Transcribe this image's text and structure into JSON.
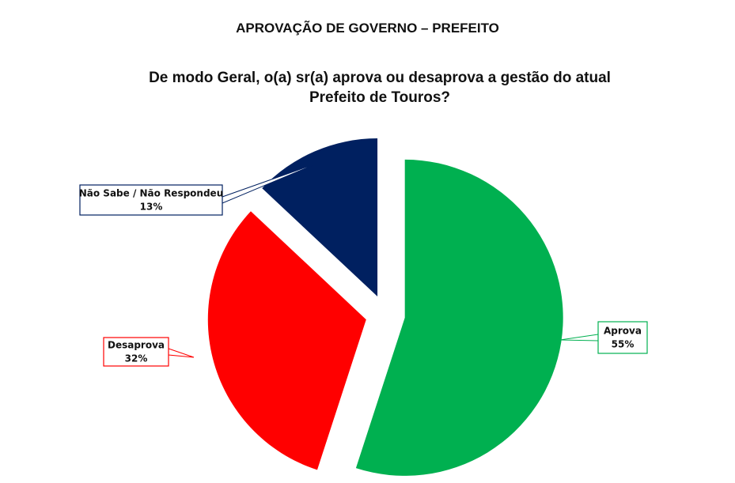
{
  "chart_data": {
    "type": "pie",
    "title": "APROVAÇÃO DE GOVERNO – PREFEITO",
    "subtitle": "De modo Geral, o(a) sr(a) aprova ou desaprova a gestão do atual Prefeito de Touros?",
    "categories": [
      "Aprova",
      "Desaprova",
      "Não Sabe / Não Respondeu"
    ],
    "values": [
      55,
      32,
      13
    ],
    "value_labels": [
      "55%",
      "32%",
      "13%"
    ],
    "colors": [
      "#00b050",
      "#ff0000",
      "#002060"
    ]
  }
}
